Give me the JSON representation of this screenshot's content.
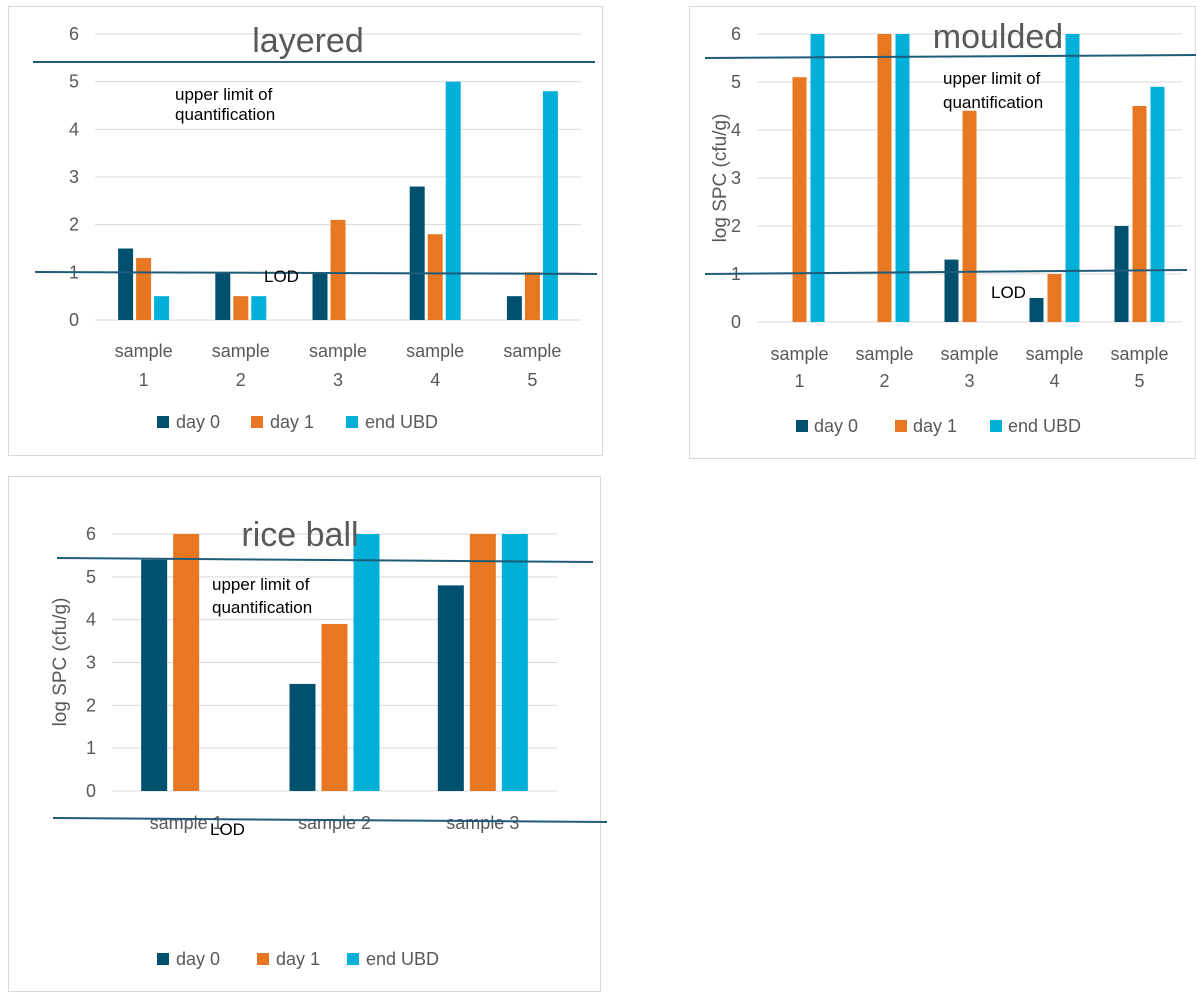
{
  "colors": {
    "day0": "#00506E",
    "day1": "#E87722",
    "endUBD": "#00B0D8",
    "refline": "#1F5C7A",
    "grid": "#D9D9D9",
    "frame": "#D9D9D9"
  },
  "legend": [
    "day 0",
    "day 1",
    "end UBD"
  ],
  "annotations": {
    "upper": [
      "upper limit of",
      "quantification"
    ],
    "lod": "LOD"
  },
  "chart_data": [
    {
      "type": "bar",
      "title": "layered",
      "ylabel": "",
      "ylim": [
        0,
        6
      ],
      "yticks": [
        "0",
        "1",
        "2",
        "3",
        "4",
        "5",
        "6"
      ],
      "categories": [
        [
          "sample",
          "1"
        ],
        [
          "sample",
          "2"
        ],
        [
          "sample",
          "3"
        ],
        [
          "sample",
          "4"
        ],
        [
          "sample",
          "5"
        ]
      ],
      "series": [
        {
          "name": "day 0",
          "values": [
            1.5,
            1.0,
            1.0,
            2.8,
            0.5
          ]
        },
        {
          "name": "day 1",
          "values": [
            1.3,
            0.5,
            2.1,
            1.8,
            1.0
          ]
        },
        {
          "name": "end UBD",
          "values": [
            0.5,
            0.5,
            null,
            5.0,
            4.8
          ]
        }
      ],
      "upper_limit": 5.5,
      "lod": 1.0
    },
    {
      "type": "bar",
      "title": "moulded",
      "ylabel": "log SPC (cfu/g)",
      "ylim": [
        0,
        6
      ],
      "yticks": [
        "0",
        "1",
        "2",
        "3",
        "4",
        "5",
        "6"
      ],
      "categories": [
        [
          "sample",
          "1"
        ],
        [
          "sample",
          "2"
        ],
        [
          "sample",
          "3"
        ],
        [
          "sample",
          "4"
        ],
        [
          "sample",
          "5"
        ]
      ],
      "series": [
        {
          "name": "day 0",
          "values": [
            null,
            null,
            1.3,
            0.5,
            2.0
          ]
        },
        {
          "name": "day 1",
          "values": [
            5.1,
            6.0,
            4.4,
            1.0,
            4.5
          ]
        },
        {
          "name": "end UBD",
          "values": [
            6.0,
            6.0,
            null,
            6.0,
            4.9
          ]
        }
      ],
      "upper_limit": 5.5,
      "lod": 1.0
    },
    {
      "type": "bar",
      "title": "rice ball",
      "ylabel": "log SPC (cfu/g)",
      "ylim": [
        0,
        6
      ],
      "yticks": [
        "0",
        "1",
        "2",
        "3",
        "4",
        "5",
        "6"
      ],
      "categories": [
        [
          "sample 1"
        ],
        [
          "sample 2"
        ],
        [
          "sample 3"
        ]
      ],
      "series": [
        {
          "name": "day 0",
          "values": [
            5.4,
            2.5,
            4.8
          ]
        },
        {
          "name": "day 1",
          "values": [
            6.0,
            3.9,
            6.0
          ]
        },
        {
          "name": "end UBD",
          "values": [
            null,
            6.0,
            6.0
          ]
        }
      ],
      "upper_limit": 5.5,
      "lod": 1.0
    }
  ]
}
